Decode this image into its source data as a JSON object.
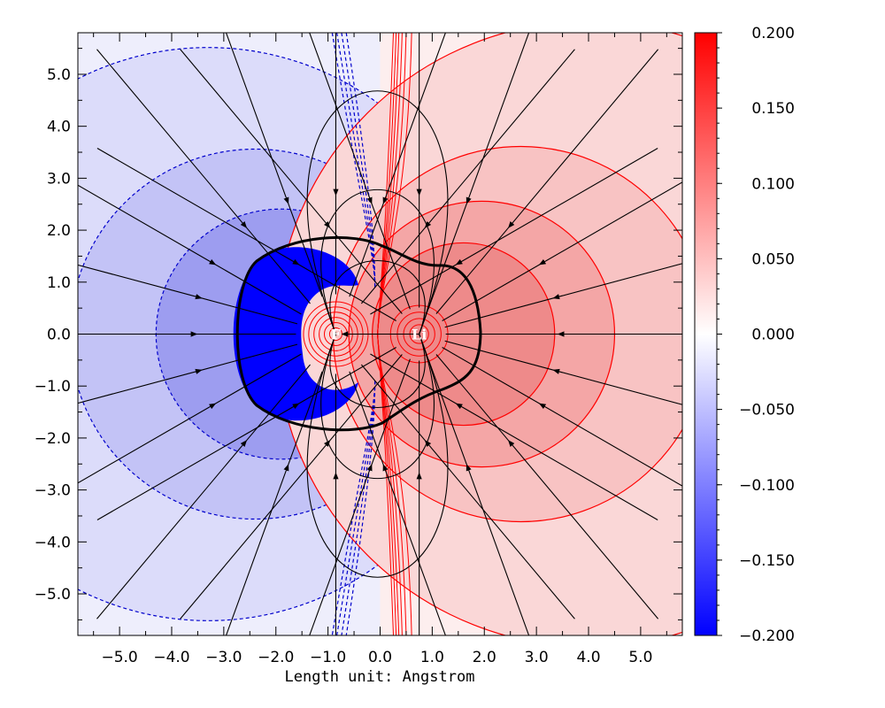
{
  "chart_data": {
    "type": "heatmap",
    "title": "",
    "xlabel": "Length unit: Angstrom",
    "ylabel": "",
    "xlim": [
      -5.8,
      5.8
    ],
    "ylim": [
      -5.8,
      5.8
    ],
    "x_ticks": [
      -5.0,
      -4.0,
      -3.0,
      -2.0,
      -1.0,
      0.0,
      1.0,
      2.0,
      3.0,
      4.0,
      5.0
    ],
    "x_tick_labels": [
      "−5.0",
      "−4.0",
      "−3.0",
      "−2.0",
      "−1.0",
      "0.0",
      "1.0",
      "2.0",
      "3.0",
      "4.0",
      "5.0"
    ],
    "y_ticks": [
      5.0,
      4.0,
      3.0,
      2.0,
      1.0,
      0.0,
      -1.0,
      -2.0,
      -3.0,
      -4.0,
      -5.0
    ],
    "y_tick_labels": [
      "5.0",
      "4.0",
      "3.0",
      "2.0",
      "1.0",
      "0.0",
      "−1.0",
      "−2.0",
      "−3.0",
      "−4.0",
      "−5.0"
    ],
    "colorbar": {
      "min": -0.2,
      "max": 0.2,
      "ticks": [
        0.2,
        0.15,
        0.1,
        0.05,
        0.0,
        -0.05,
        -0.1,
        -0.15,
        -0.2
      ],
      "tick_labels": [
        "0.200",
        "0.150",
        "0.100",
        "0.050",
        "0.000",
        "−0.050",
        "−0.100",
        "−0.150",
        "−0.200"
      ],
      "colormap": [
        "#0000ff",
        "#ffffff",
        "#ff0000"
      ]
    },
    "atoms": [
      {
        "label": "F",
        "x": -0.85,
        "y": 0.0,
        "charge": -1
      },
      {
        "label": "Li",
        "x": 0.75,
        "y": 0.0,
        "charge": 1
      }
    ],
    "positive_contours_color": "#ff0000",
    "negative_contours_color": "#0000cc",
    "field_lines_color": "#000000",
    "grid": false
  }
}
